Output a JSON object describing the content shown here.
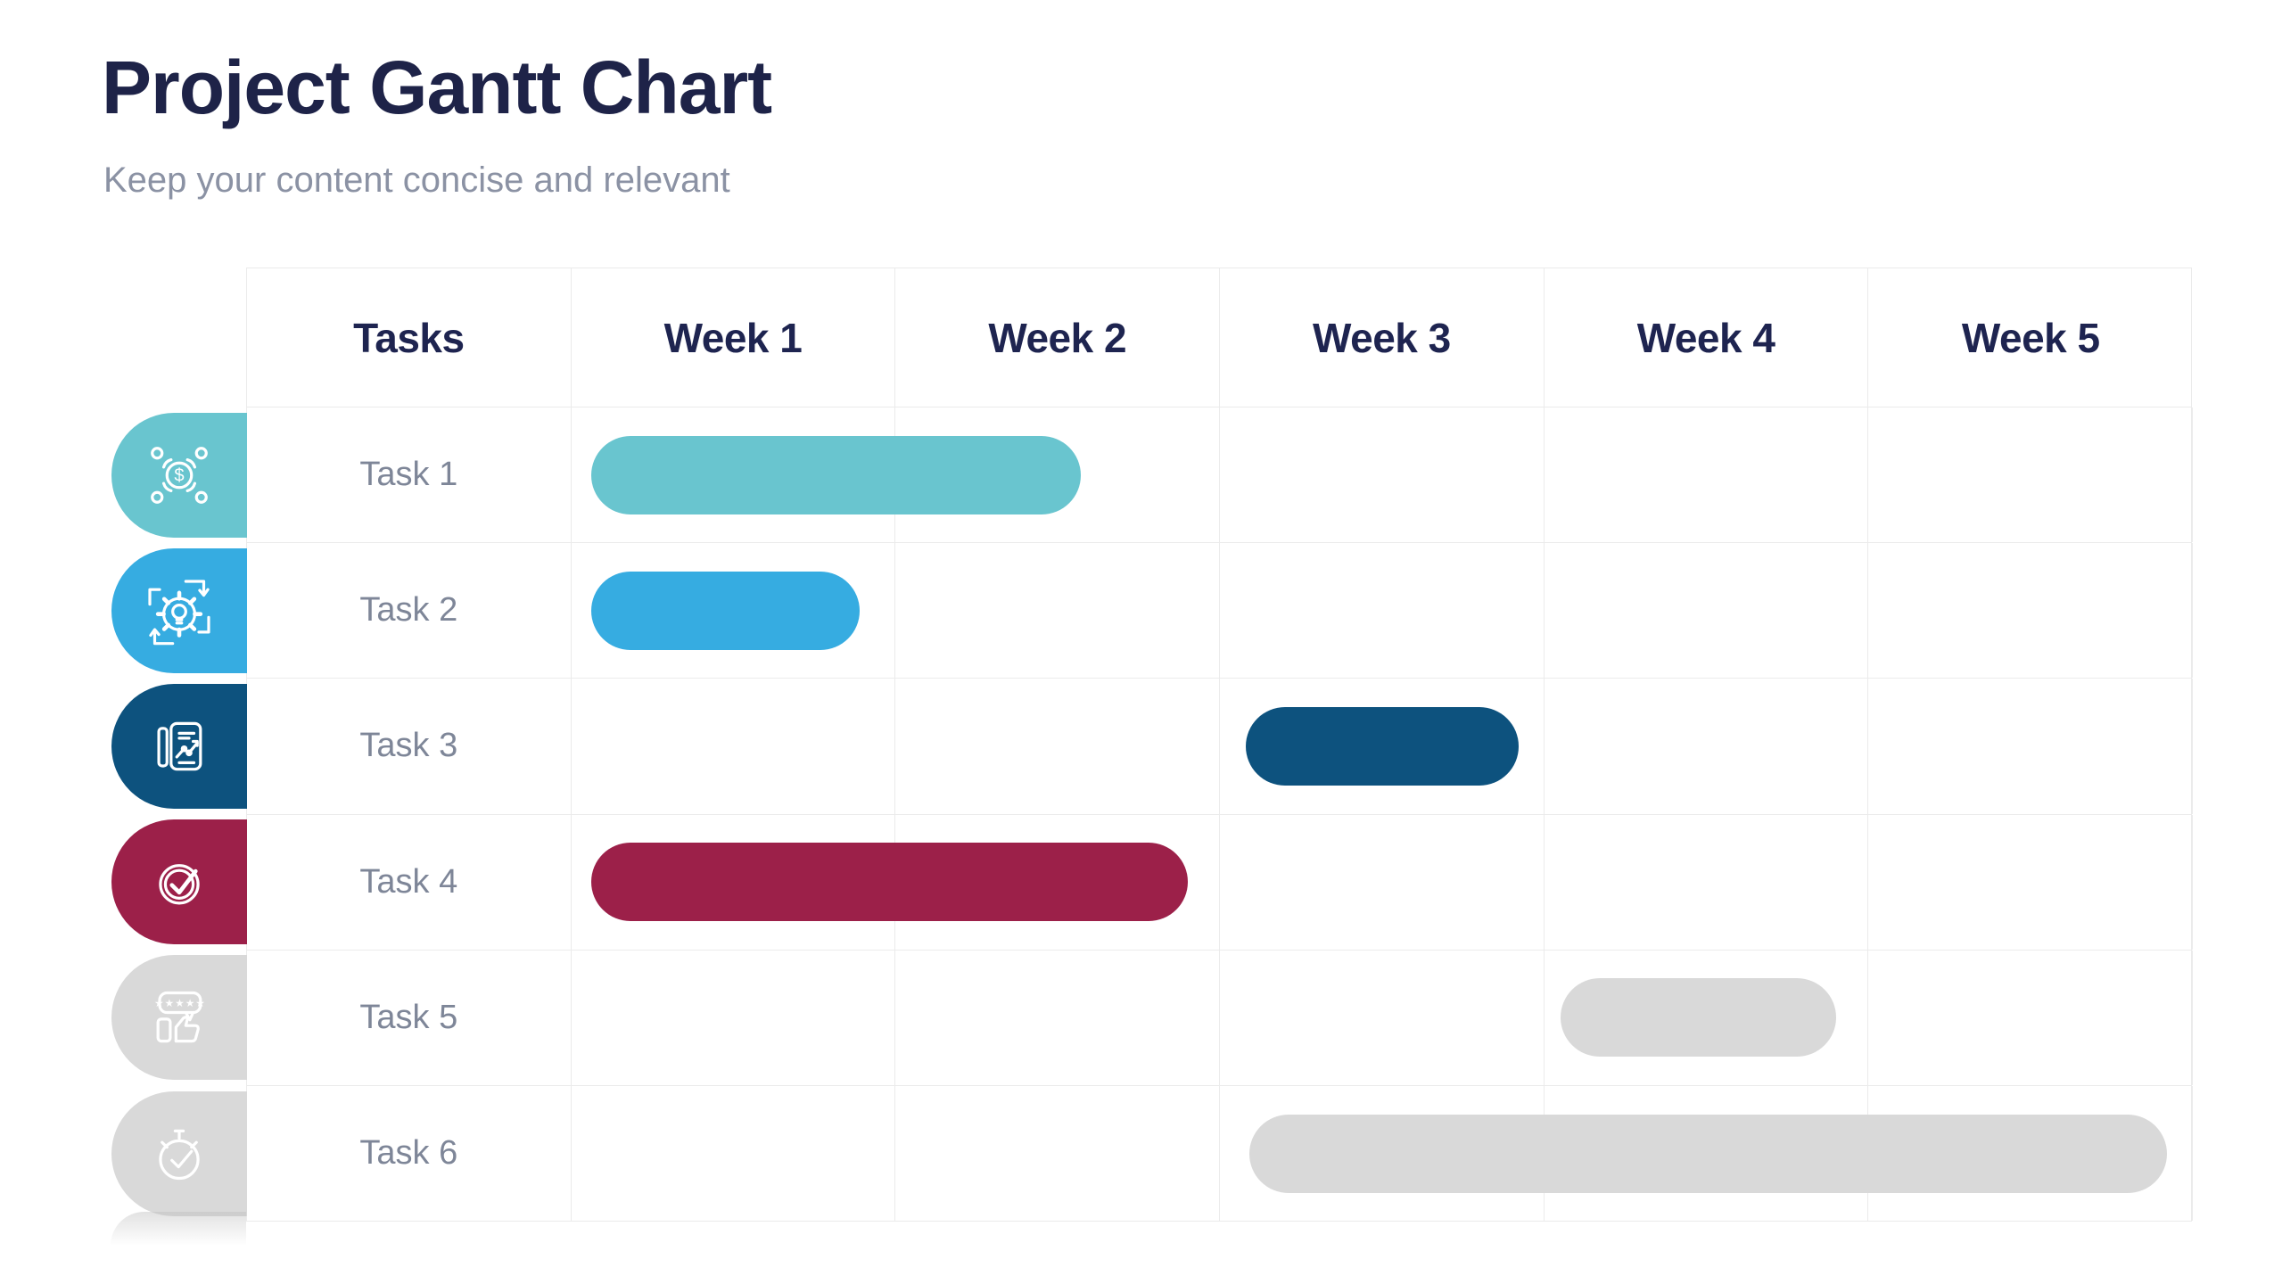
{
  "page": {
    "title": "Project Gantt Chart",
    "subtitle": "Keep your content concise and relevant"
  },
  "colors": {
    "title_text": "#1e2348",
    "subtitle_text": "#8b92a4",
    "header_text": "#1e2450",
    "row_label_text": "#7e8698",
    "grid_line": "#ebebeb",
    "teal": "#69c5cf",
    "sky_blue": "#36ace1",
    "navy": "#0d527e",
    "crimson": "#9c2049",
    "inactive_gray": "#d9d9d9",
    "background": "#ffffff"
  },
  "chart_data": {
    "type": "gantt",
    "title": "Project Gantt Chart",
    "subtitle": "Keep your content concise and relevant",
    "columns": [
      "Tasks",
      "Week 1",
      "Week 2",
      "Week 3",
      "Week 4",
      "Week 5"
    ],
    "weeks_shown": 5,
    "grid": true,
    "tasks": [
      {
        "label": "Task 1",
        "icon": "funds-distribution-icon",
        "pill_color": "#69c5cf",
        "bar": {
          "start_week": 1.06,
          "end_week": 2.57,
          "color": "#69c5cf"
        }
      },
      {
        "label": "Task 2",
        "icon": "idea-gear-icon",
        "pill_color": "#36ace1",
        "bar": {
          "start_week": 1.06,
          "end_week": 1.89,
          "color": "#36ace1"
        }
      },
      {
        "label": "Task 3",
        "icon": "report-chart-icon",
        "pill_color": "#0d527e",
        "bar": {
          "start_week": 3.08,
          "end_week": 3.92,
          "color": "#0d527e"
        }
      },
      {
        "label": "Task 4",
        "icon": "check-circle-icon",
        "pill_color": "#9c2049",
        "bar": {
          "start_week": 1.06,
          "end_week": 2.9,
          "color": "#9c2049"
        }
      },
      {
        "label": "Task 5",
        "icon": "rating-thumbs-up-icon",
        "pill_color": "#d9d9d9",
        "bar": {
          "start_week": 4.05,
          "end_week": 4.9,
          "color": "#d9d9d9"
        }
      },
      {
        "label": "Task 6",
        "icon": "stopwatch-check-icon",
        "pill_color": "#d9d9d9",
        "bar": {
          "start_week": 3.09,
          "end_week": 5.92,
          "color": "#d9d9d9"
        }
      }
    ]
  }
}
